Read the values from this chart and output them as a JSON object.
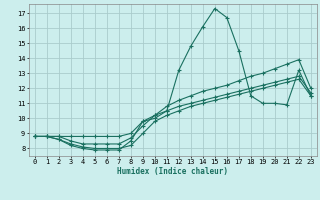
{
  "xlabel": "Humidex (Indice chaleur)",
  "bg_color": "#cceeed",
  "grid_color": "#aacccc",
  "line_color": "#1a7060",
  "xlim": [
    -0.5,
    23.5
  ],
  "ylim": [
    7.5,
    17.6
  ],
  "yticks": [
    8,
    9,
    10,
    11,
    12,
    13,
    14,
    15,
    16,
    17
  ],
  "xticks": [
    0,
    1,
    2,
    3,
    4,
    5,
    6,
    7,
    8,
    9,
    10,
    11,
    12,
    13,
    14,
    15,
    16,
    17,
    18,
    19,
    20,
    21,
    22,
    23
  ],
  "series": [
    {
      "x": [
        0,
        1,
        2,
        3,
        4,
        5,
        6,
        7,
        8,
        9,
        10,
        11,
        12,
        13,
        14,
        15,
        16,
        17,
        18,
        19,
        20,
        21,
        22,
        23
      ],
      "y": [
        8.8,
        8.8,
        8.6,
        8.2,
        8.0,
        7.9,
        7.9,
        7.9,
        8.5,
        9.8,
        10.0,
        10.5,
        13.2,
        14.8,
        16.1,
        17.3,
        16.7,
        14.5,
        11.5,
        11.0,
        11.0,
        10.9,
        13.2,
        11.5
      ]
    },
    {
      "x": [
        0,
        1,
        2,
        3,
        4,
        5,
        6,
        7,
        8,
        9,
        10,
        11,
        12,
        13,
        14,
        15,
        16,
        17,
        18,
        19,
        20,
        21,
        22,
        23
      ],
      "y": [
        8.8,
        8.8,
        8.6,
        8.3,
        8.1,
        8.0,
        8.0,
        8.0,
        8.2,
        9.0,
        9.8,
        10.2,
        10.5,
        10.8,
        11.0,
        11.2,
        11.4,
        11.6,
        11.8,
        12.0,
        12.2,
        12.4,
        12.6,
        11.5
      ]
    },
    {
      "x": [
        0,
        1,
        2,
        3,
        4,
        5,
        6,
        7,
        8,
        9,
        10,
        11,
        12,
        13,
        14,
        15,
        16,
        17,
        18,
        19,
        20,
        21,
        22,
        23
      ],
      "y": [
        8.8,
        8.8,
        8.8,
        8.5,
        8.3,
        8.3,
        8.3,
        8.3,
        8.7,
        9.5,
        10.2,
        10.5,
        10.8,
        11.0,
        11.2,
        11.4,
        11.6,
        11.8,
        12.0,
        12.2,
        12.4,
        12.6,
        12.8,
        11.7
      ]
    },
    {
      "x": [
        0,
        1,
        2,
        3,
        4,
        5,
        6,
        7,
        8,
        9,
        10,
        11,
        12,
        13,
        14,
        15,
        16,
        17,
        18,
        19,
        20,
        21,
        22,
        23
      ],
      "y": [
        8.8,
        8.8,
        8.8,
        8.8,
        8.8,
        8.8,
        8.8,
        8.8,
        9.0,
        9.8,
        10.2,
        10.8,
        11.2,
        11.5,
        11.8,
        12.0,
        12.2,
        12.5,
        12.8,
        13.0,
        13.3,
        13.6,
        13.9,
        12.0
      ]
    }
  ]
}
